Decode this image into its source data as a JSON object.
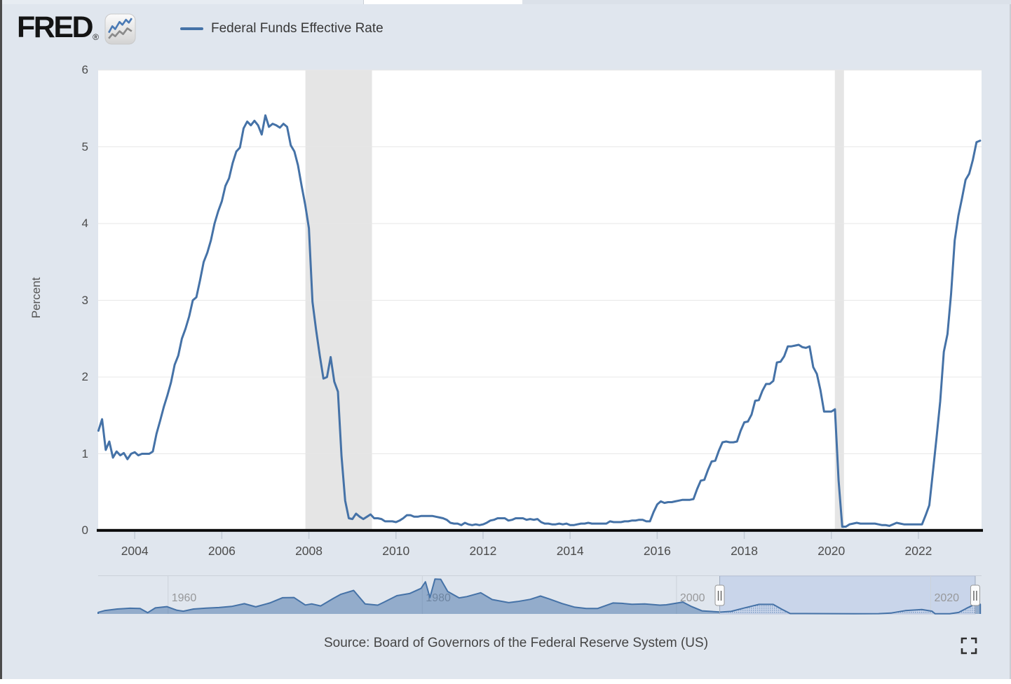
{
  "header": {
    "logo_text": "FRED",
    "registered_mark": "®",
    "legend": {
      "marker_color": "#4572a7",
      "label": "Federal Funds Effective Rate"
    }
  },
  "chart_data": {
    "type": "line",
    "title": "Federal Funds Effective Rate",
    "ylabel": "Percent",
    "ylim": [
      0,
      6
    ],
    "y_ticks": [
      0,
      1,
      2,
      3,
      4,
      5,
      6
    ],
    "x_ticks": [
      2004,
      2006,
      2008,
      2010,
      2012,
      2014,
      2016,
      2018,
      2020,
      2022
    ],
    "x_tick_labels": [
      "2004",
      "2006",
      "2008",
      "2010",
      "2012",
      "2014",
      "2016",
      "2018",
      "2020",
      "2022"
    ],
    "x_domain": [
      2003.16,
      2023.45
    ],
    "grid": "horizontal",
    "legend_position": "top",
    "series": [
      {
        "name": "Federal Funds Effective Rate",
        "color": "#4572a7",
        "unit": "percent",
        "frequency": "monthly",
        "start": "2003-03",
        "end": "2023-06",
        "values": [
          1.3,
          1.45,
          1.05,
          1.16,
          0.95,
          1.03,
          0.98,
          1.01,
          0.93,
          1.0,
          1.02,
          0.98,
          1.0,
          1.0,
          1.0,
          1.03,
          1.26,
          1.43,
          1.61,
          1.76,
          1.93,
          2.16,
          2.28,
          2.5,
          2.63,
          2.79,
          3.0,
          3.04,
          3.26,
          3.5,
          3.62,
          3.78,
          4.0,
          4.16,
          4.29,
          4.49,
          4.59,
          4.79,
          4.94,
          4.99,
          5.24,
          5.33,
          5.28,
          5.34,
          5.28,
          5.16,
          5.41,
          5.26,
          5.3,
          5.28,
          5.25,
          5.3,
          5.26,
          5.02,
          4.94,
          4.76,
          4.49,
          4.24,
          3.94,
          2.98,
          2.61,
          2.28,
          1.98,
          2.0,
          2.26,
          1.94,
          1.81,
          0.97,
          0.39,
          0.16,
          0.15,
          0.22,
          0.18,
          0.15,
          0.18,
          0.21,
          0.16,
          0.16,
          0.15,
          0.12,
          0.12,
          0.12,
          0.11,
          0.13,
          0.16,
          0.2,
          0.2,
          0.18,
          0.18,
          0.19,
          0.19,
          0.19,
          0.19,
          0.18,
          0.17,
          0.16,
          0.14,
          0.1,
          0.09,
          0.09,
          0.07,
          0.1,
          0.08,
          0.07,
          0.08,
          0.07,
          0.08,
          0.1,
          0.13,
          0.14,
          0.16,
          0.16,
          0.16,
          0.13,
          0.14,
          0.16,
          0.16,
          0.16,
          0.14,
          0.15,
          0.14,
          0.15,
          0.11,
          0.09,
          0.09,
          0.08,
          0.08,
          0.09,
          0.08,
          0.09,
          0.07,
          0.07,
          0.08,
          0.09,
          0.09,
          0.1,
          0.09,
          0.09,
          0.09,
          0.09,
          0.09,
          0.12,
          0.11,
          0.11,
          0.11,
          0.12,
          0.12,
          0.13,
          0.13,
          0.14,
          0.14,
          0.12,
          0.12,
          0.24,
          0.34,
          0.38,
          0.36,
          0.37,
          0.37,
          0.38,
          0.39,
          0.4,
          0.4,
          0.4,
          0.41,
          0.54,
          0.65,
          0.66,
          0.79,
          0.9,
          0.91,
          1.04,
          1.15,
          1.16,
          1.15,
          1.15,
          1.16,
          1.3,
          1.41,
          1.42,
          1.51,
          1.69,
          1.7,
          1.82,
          1.91,
          1.91,
          1.95,
          2.19,
          2.2,
          2.27,
          2.4,
          2.4,
          2.41,
          2.42,
          2.39,
          2.38,
          2.4,
          2.13,
          2.04,
          1.83,
          1.55,
          1.55,
          1.55,
          1.58,
          0.65,
          0.05,
          0.05,
          0.08,
          0.09,
          0.1,
          0.09,
          0.09,
          0.09,
          0.09,
          0.09,
          0.08,
          0.07,
          0.07,
          0.06,
          0.08,
          0.1,
          0.09,
          0.08,
          0.08,
          0.08,
          0.08,
          0.08,
          0.08,
          0.2,
          0.33,
          0.77,
          1.21,
          1.68,
          2.33,
          2.56,
          3.08,
          3.78,
          4.1,
          4.33,
          4.57,
          4.65,
          4.83,
          5.06,
          5.08
        ]
      }
    ],
    "recession_bands": [
      {
        "from": 2007.92,
        "to": 2009.45,
        "color": "#e5e5e5"
      },
      {
        "from": 2020.08,
        "to": 2020.29,
        "color": "#e5e5e5"
      }
    ]
  },
  "navigator": {
    "x_domain": [
      1954.5,
      2024.0
    ],
    "year_labels": [
      "1960",
      "1980",
      "2000",
      "2020"
    ],
    "year_label_values": [
      1960,
      1980,
      2000,
      2020
    ],
    "selection": {
      "from": 2003.4,
      "to": 2023.5
    },
    "ymax": 20,
    "series": {
      "x": [
        1954.5,
        1955,
        1956,
        1957,
        1957.8,
        1958.4,
        1959,
        1959.9,
        1960.7,
        1961.2,
        1962,
        1963,
        1964,
        1965,
        1966,
        1966.9,
        1968,
        1969,
        1969.9,
        1970.8,
        1971.3,
        1972,
        1973,
        1973.6,
        1974.6,
        1975.5,
        1976.5,
        1977,
        1978,
        1979,
        1979.9,
        1980.25,
        1980.6,
        1981,
        1981.45,
        1982,
        1982.9,
        1983.5,
        1984.6,
        1985.5,
        1986.8,
        1987.5,
        1988.5,
        1989.3,
        1990,
        1991,
        1992,
        1992.9,
        1993.8,
        1995,
        1995.7,
        1996.5,
        1997.5,
        1998.7,
        1999.2,
        2000.5,
        2001.2,
        2002,
        2003.5,
        2004.3,
        2005.3,
        2006.5,
        2007.6,
        2008.3,
        2008.95,
        2010,
        2012,
        2014,
        2015.9,
        2016.9,
        2018,
        2019.3,
        2020.1,
        2020.35,
        2021.5,
        2022.2,
        2022.8,
        2023.4,
        2023.9
      ],
      "y": [
        0.85,
        1.8,
        2.7,
        3.1,
        3.0,
        0.7,
        3.3,
        4.0,
        2.0,
        1.5,
        2.7,
        3.2,
        3.5,
        4.1,
        5.6,
        3.9,
        6.0,
        8.9,
        9.0,
        4.9,
        5.5,
        4.4,
        8.5,
        10.8,
        12.9,
        5.5,
        4.8,
        6.5,
        10.0,
        11.2,
        14.0,
        17.6,
        9.0,
        19.1,
        19.0,
        12.3,
        8.8,
        9.5,
        11.6,
        7.9,
        6.2,
        6.8,
        8.0,
        9.8,
        8.2,
        5.7,
        3.7,
        3.0,
        3.0,
        6.0,
        5.8,
        5.3,
        5.5,
        4.8,
        5.0,
        6.5,
        4.0,
        1.7,
        1.0,
        1.4,
        3.2,
        5.25,
        5.25,
        2.5,
        0.2,
        0.18,
        0.14,
        0.09,
        0.14,
        0.5,
        1.8,
        2.4,
        1.5,
        0.06,
        0.08,
        0.8,
        3.0,
        5.06,
        5.3
      ]
    }
  },
  "footer": {
    "source": "Source: Board of Governors of the Federal Reserve System (US)"
  },
  "colors": {
    "accent": "#4572a7",
    "page_bg": "#e0e6ee",
    "plot_bg": "#ffffff",
    "gridline": "#e7e7e7",
    "recession_band": "#e5e5e5",
    "axis_line": "#0b0b0b",
    "tick_mark": "#c2cbd6",
    "nav_border": "#ccd2da",
    "nav_selection_bg": "#c9d5ea",
    "nav_selection_border": "#b7c3da",
    "nav_area_fill": "rgba(69,114,167,0.5)",
    "nav_label": "#97989a",
    "handle_bg": "#fcfcfc",
    "handle_border": "#989898",
    "text_axis": "#4c4c4c",
    "text_source": "#454545",
    "text_legend": "#383838"
  },
  "icons": {
    "logo_chart": "line-chart-icon",
    "fullscreen": "fullscreen-expand-icon"
  }
}
